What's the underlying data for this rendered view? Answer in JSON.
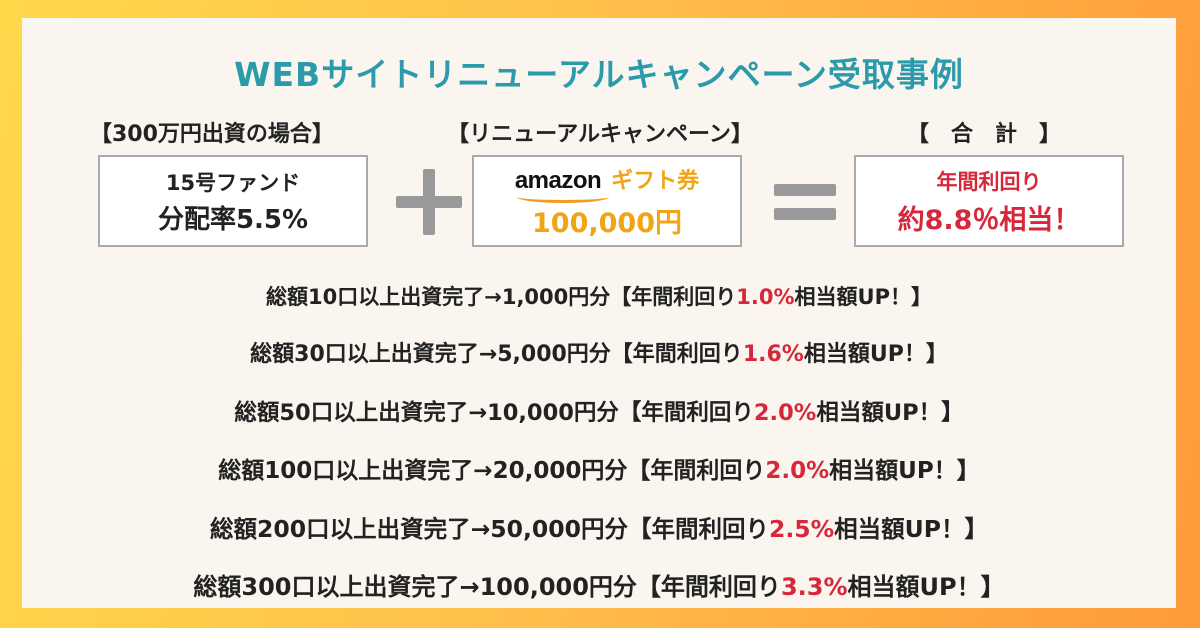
{
  "title": "WEBサイトリニューアルキャンペーン受取事例",
  "labels": {
    "investment": "【300万円出資の場合】",
    "campaign": "【リニューアルキャンペーン】",
    "total": "【　合　計　】"
  },
  "fund_box": {
    "line1": "15号ファンド",
    "line2": "分配率5.5%"
  },
  "gift_box": {
    "brand": "amazon",
    "gift": "ギフト券",
    "amount": "100,000円"
  },
  "total_box": {
    "line1": "年間利回り",
    "line2": "約8.8％相当！"
  },
  "colors": {
    "title": "#2b9aaa",
    "accent_red": "#d6283a",
    "gift_orange": "#f0a516"
  },
  "rows": [
    {
      "prefix": "総額10口以上出資完了→1,000円分【年間利回り",
      "pct": "1.0%",
      "suffix": "相当額UP！】"
    },
    {
      "prefix": "総額30口以上出資完了→5,000円分【年間利回り",
      "pct": "1.6%",
      "suffix": "相当額UP！】"
    },
    {
      "prefix": "総額50口以上出資完了→10,000円分【年間利回り",
      "pct": "2.0%",
      "suffix": "相当額UP！】"
    },
    {
      "prefix": "総額100口以上出資完了→20,000円分【年間利回り",
      "pct": "2.0%",
      "suffix": "相当額UP！】"
    },
    {
      "prefix": "総額200口以上出資完了→50,000円分【年間利回り",
      "pct": "2.5%",
      "suffix": "相当額UP！】"
    },
    {
      "prefix": "総額300口以上出資完了→100,000円分【年間利回り",
      "pct": "3.3%",
      "suffix": "相当額UP！】"
    }
  ]
}
